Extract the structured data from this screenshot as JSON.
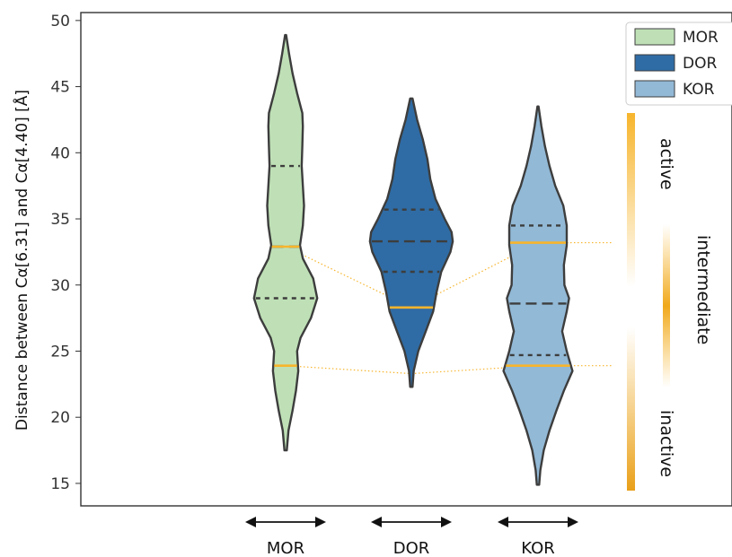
{
  "chart_data": {
    "type": "violin",
    "ylabel": "Distance between Cα[6.31] and Cα[4.40] [Å]",
    "ylim": [
      13.3,
      50.6
    ],
    "yticks": [
      15,
      20,
      25,
      30,
      35,
      40,
      45,
      50
    ],
    "grid": false,
    "legend_position": "top-right",
    "categories": [
      "MOR",
      "DOR",
      "KOR"
    ],
    "series": [
      {
        "name": "MOR",
        "color": "#bfe0b6",
        "min": 17.5,
        "max": 48.9,
        "quartiles": [
          29.0,
          32.9,
          39.0
        ],
        "density": [
          [
            17.5,
            0.02
          ],
          [
            19,
            0.05
          ],
          [
            20.5,
            0.12
          ],
          [
            22,
            0.18
          ],
          [
            23.5,
            0.22
          ],
          [
            25,
            0.2
          ],
          [
            26,
            0.26
          ],
          [
            27.5,
            0.44
          ],
          [
            29,
            0.55
          ],
          [
            30.5,
            0.48
          ],
          [
            32,
            0.3
          ],
          [
            33,
            0.25
          ],
          [
            34.5,
            0.3
          ],
          [
            36,
            0.32
          ],
          [
            37.5,
            0.3
          ],
          [
            39,
            0.28
          ],
          [
            40.5,
            0.29
          ],
          [
            42,
            0.3
          ],
          [
            43,
            0.29
          ],
          [
            44.5,
            0.2
          ],
          [
            46,
            0.12
          ],
          [
            47.5,
            0.06
          ],
          [
            48.9,
            0.01
          ]
        ]
      },
      {
        "name": "DOR",
        "color": "#2f6ca5",
        "min": 22.3,
        "max": 44.1,
        "quartiles": [
          31.0,
          33.3,
          35.7
        ],
        "density": [
          [
            22.3,
            0.02
          ],
          [
            23.5,
            0.04
          ],
          [
            25,
            0.12
          ],
          [
            26.5,
            0.25
          ],
          [
            28,
            0.38
          ],
          [
            29.5,
            0.44
          ],
          [
            31,
            0.52
          ],
          [
            32.5,
            0.68
          ],
          [
            33.3,
            0.72
          ],
          [
            34,
            0.7
          ],
          [
            35,
            0.58
          ],
          [
            36.5,
            0.42
          ],
          [
            38,
            0.33
          ],
          [
            39.5,
            0.28
          ],
          [
            41,
            0.2
          ],
          [
            42.5,
            0.1
          ],
          [
            44.1,
            0.02
          ]
        ]
      },
      {
        "name": "KOR",
        "color": "#92b9d6",
        "min": 14.9,
        "max": 43.5,
        "quartiles": [
          24.7,
          28.6,
          34.5
        ],
        "density": [
          [
            14.9,
            0.02
          ],
          [
            16,
            0.04
          ],
          [
            17.5,
            0.1
          ],
          [
            19,
            0.2
          ],
          [
            20.5,
            0.32
          ],
          [
            22,
            0.45
          ],
          [
            23.5,
            0.6
          ],
          [
            25,
            0.5
          ],
          [
            26.5,
            0.42
          ],
          [
            28,
            0.5
          ],
          [
            29,
            0.54
          ],
          [
            30,
            0.46
          ],
          [
            31.5,
            0.45
          ],
          [
            33,
            0.5
          ],
          [
            34.5,
            0.5
          ],
          [
            36,
            0.44
          ],
          [
            37.5,
            0.3
          ],
          [
            39,
            0.2
          ],
          [
            40.5,
            0.12
          ],
          [
            42,
            0.06
          ],
          [
            43.5,
            0.01
          ]
        ]
      }
    ],
    "highlight_levels": [
      {
        "category": "MOR",
        "values": [
          23.9,
          32.9
        ]
      },
      {
        "category": "DOR",
        "values": [
          28.3
        ]
      },
      {
        "category": "KOR",
        "values": [
          23.9,
          33.2
        ]
      }
    ],
    "state_labels": [
      "active",
      "intermediate",
      "inactive"
    ],
    "colors": {
      "highlight": "#f7b52c",
      "outline": "#3d3d3d",
      "state_bar": "#f0a81a"
    }
  },
  "state_annotations": {
    "active": "active",
    "intermediate": "intermediate",
    "inactive": "inactive"
  }
}
